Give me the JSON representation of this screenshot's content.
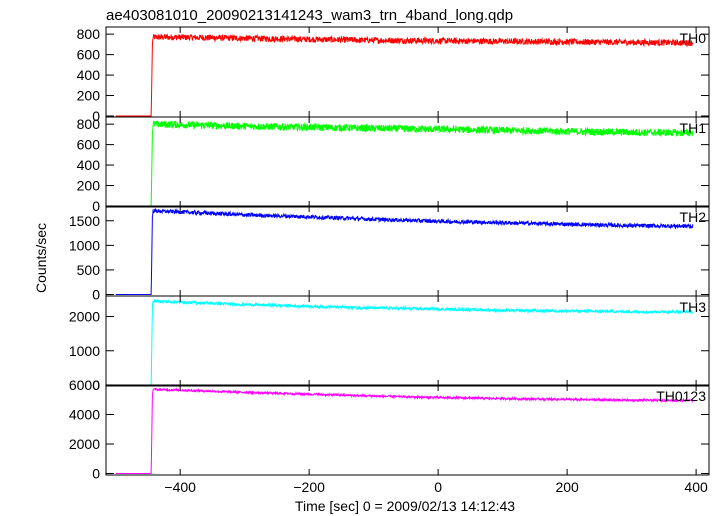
{
  "title": "ae403081010_20090213141243_wam3_trn_4band_long.qdp",
  "xlabel": "Time [sec] 0 = 2009/02/13 14:12:43",
  "ylabel": "Counts/sec",
  "chart_data": {
    "type": "line",
    "title": "ae403081010_20090213141243_wam3_trn_4band_long.qdp",
    "xlabel": "Time [sec] 0 = 2009/02/13 14:12:43",
    "ylabel": "Counts/sec",
    "xlim": [
      -515,
      420
    ],
    "x_ticks": [
      "−400",
      "−200",
      "0",
      "200",
      "400"
    ],
    "x_tick_values": [
      -400,
      -200,
      0,
      200,
      400
    ],
    "grid": false,
    "panels": [
      {
        "name": "TH0",
        "color": "#ff0000",
        "ylim": [
          -10,
          870
        ],
        "y_tick_labels": [
          "0",
          "200",
          "400",
          "600",
          "800"
        ],
        "y_tick_values": [
          0,
          200,
          400,
          600,
          800
        ],
        "x": [
          -500,
          -445,
          -443,
          -442,
          -400,
          -300,
          -200,
          -100,
          0,
          100,
          200,
          300,
          395
        ],
        "y": [
          0,
          0,
          700,
          770,
          770,
          760,
          750,
          740,
          735,
          730,
          725,
          720,
          715
        ],
        "noise": 30
      },
      {
        "name": "TH1",
        "color": "#00ff00",
        "ylim": [
          -10,
          870
        ],
        "y_tick_labels": [
          "0",
          "200",
          "400",
          "600",
          "800"
        ],
        "y_tick_values": [
          0,
          200,
          400,
          600,
          800
        ],
        "x": [
          -500,
          -445,
          -443,
          -442,
          -400,
          -300,
          -200,
          -100,
          0,
          100,
          200,
          300,
          395
        ],
        "y": [
          0,
          0,
          720,
          800,
          795,
          780,
          770,
          760,
          750,
          740,
          730,
          720,
          715
        ],
        "noise": 35
      },
      {
        "name": "TH2",
        "color": "#0000ff",
        "ylim": [
          -30,
          1800
        ],
        "y_tick_labels": [
          "0",
          "500",
          "1000",
          "1500"
        ],
        "y_tick_values": [
          0,
          500,
          1000,
          1500
        ],
        "x": [
          -500,
          -445,
          -443,
          -442,
          -400,
          -300,
          -200,
          -100,
          0,
          100,
          200,
          300,
          395
        ],
        "y": [
          0,
          0,
          1600,
          1700,
          1680,
          1620,
          1580,
          1530,
          1490,
          1460,
          1430,
          1400,
          1390
        ],
        "noise": 40
      },
      {
        "name": "TH3",
        "color": "#00ffff",
        "ylim": [
          -30,
          2600
        ],
        "y_tick_labels": [
          "0",
          "1000",
          "2000"
        ],
        "y_tick_values": [
          0,
          1000,
          2000
        ],
        "x": [
          -500,
          -445,
          -443,
          -442,
          -400,
          -300,
          -200,
          -100,
          0,
          100,
          200,
          300,
          395
        ],
        "y": [
          0,
          0,
          2300,
          2450,
          2420,
          2350,
          2300,
          2250,
          2220,
          2180,
          2160,
          2140,
          2140
        ],
        "noise": 40
      },
      {
        "name": "TH0123",
        "color": "#ff00ff",
        "ylim": [
          -100,
          6000
        ],
        "y_tick_labels": [
          "0",
          "2000",
          "4000",
          "6000"
        ],
        "y_tick_values": [
          0,
          2000,
          4000,
          6000
        ],
        "x": [
          -500,
          -445,
          -443,
          -442,
          -400,
          -300,
          -200,
          -100,
          0,
          100,
          200,
          300,
          395
        ],
        "y": [
          0,
          0,
          5300,
          5700,
          5650,
          5500,
          5380,
          5250,
          5150,
          5080,
          5020,
          4970,
          4950
        ],
        "noise": 70
      }
    ]
  }
}
